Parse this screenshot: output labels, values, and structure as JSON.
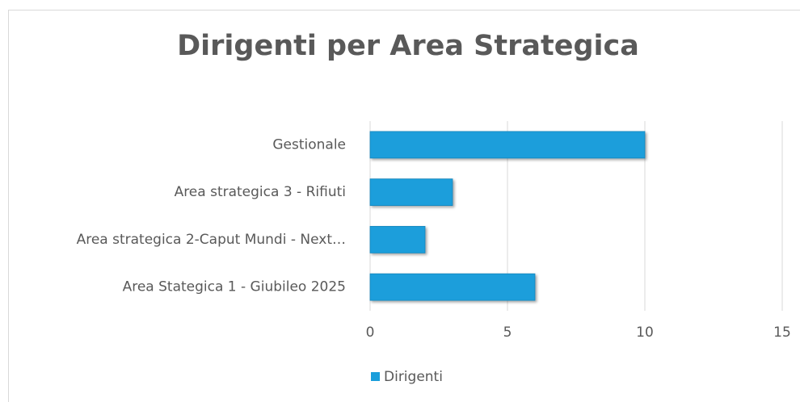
{
  "chart_data": {
    "type": "bar",
    "orientation": "horizontal",
    "title": "Dirigenti per Area Strategica",
    "categories": [
      "Gestionale",
      "Area strategica 3 - Rifiuti",
      "Area strategica 2-Caput Mundi - Next…",
      "Area Stategica 1 - Giubileo 2025"
    ],
    "series": [
      {
        "name": "Dirigenti",
        "color": "#1a9edb",
        "values": [
          10,
          3,
          2,
          6
        ]
      }
    ],
    "xlim": [
      0,
      15
    ],
    "xticks": [
      0,
      5,
      10,
      15
    ],
    "grid": true,
    "legend": "bottom"
  }
}
